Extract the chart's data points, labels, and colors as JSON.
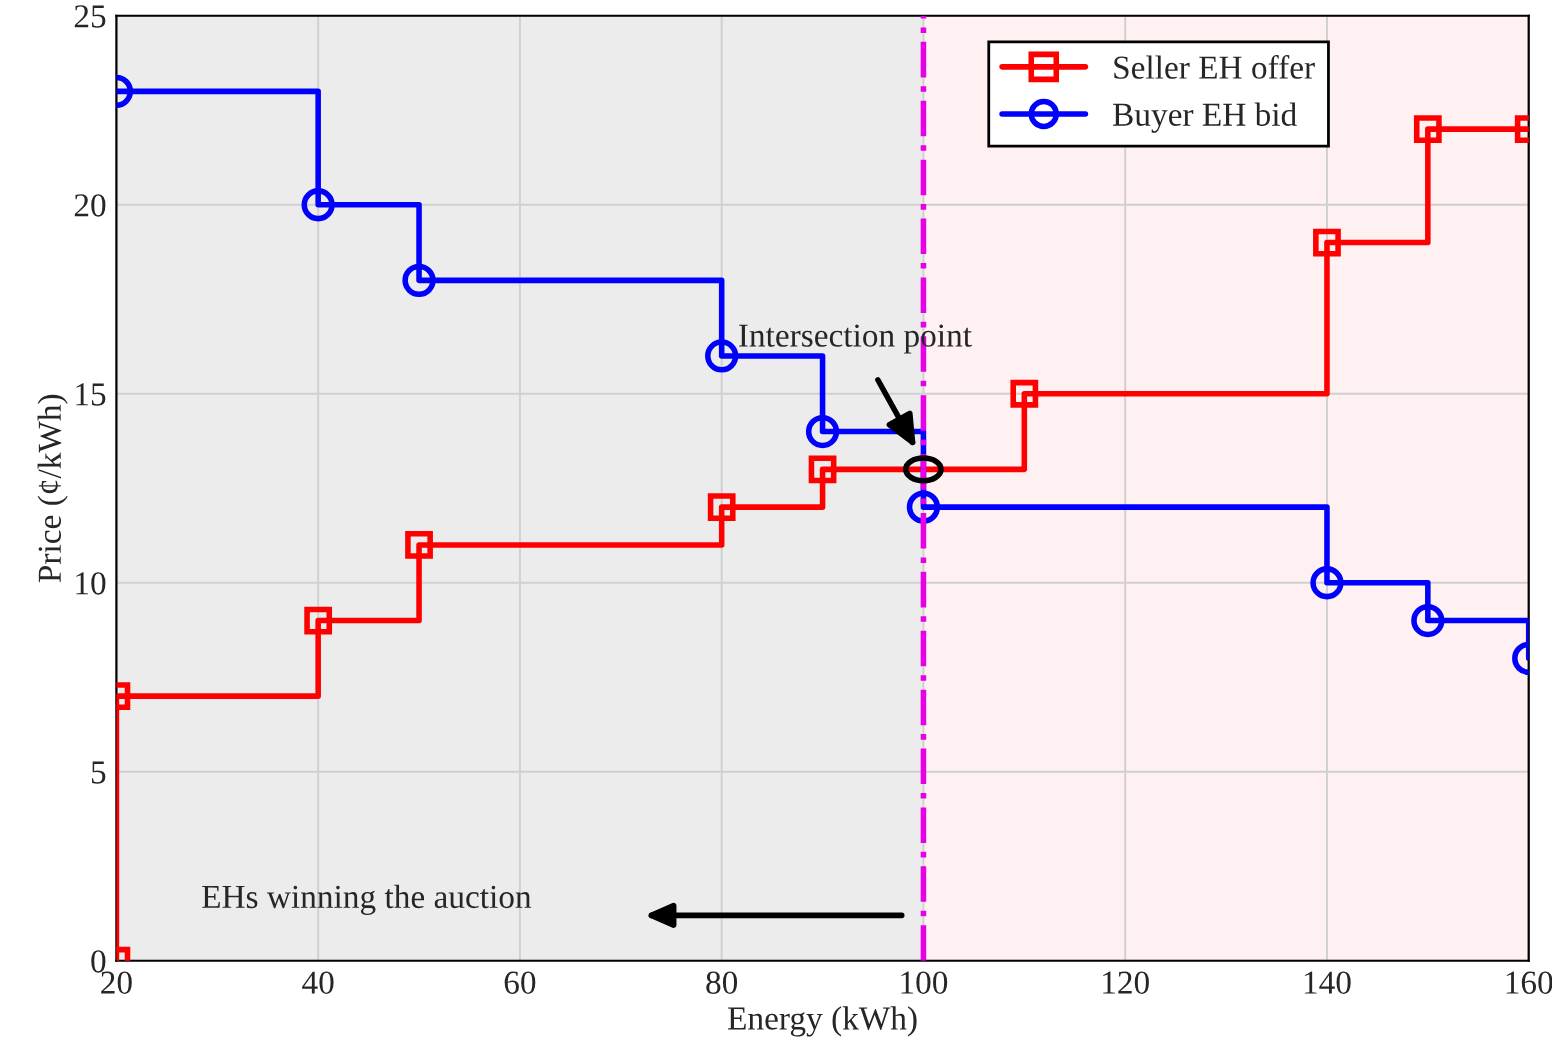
{
  "chart_data": {
    "type": "step",
    "xlabel": "Energy (kWh)",
    "ylabel": "Price (¢/kWh)",
    "series": [
      {
        "name": "Seller EH offer",
        "color": "#ff0000",
        "marker": "square",
        "x": [
          20,
          20,
          40,
          50,
          80,
          90,
          110,
          140,
          150,
          160
        ],
        "values": [
          0,
          7,
          9,
          11,
          12,
          13,
          15,
          19,
          22,
          22
        ]
      },
      {
        "name": "Buyer EH bid",
        "color": "#0000ff",
        "marker": "circle",
        "x": [
          20,
          40,
          50,
          80,
          90,
          100,
          140,
          150,
          160
        ],
        "values": [
          23,
          20,
          18,
          16,
          14,
          12,
          10,
          9,
          8
        ]
      }
    ],
    "xlim": [
      20,
      160
    ],
    "xticks": [
      20,
      40,
      60,
      80,
      100,
      120,
      140,
      160
    ],
    "ylim": [
      0,
      25
    ],
    "yticks": [
      0,
      5,
      10,
      15,
      20,
      25
    ],
    "bands": [
      {
        "axis": "x",
        "from": 20,
        "to": 100,
        "color": "#ececec"
      },
      {
        "axis": "x",
        "from": 100,
        "to": 160,
        "color": "#fff0f2"
      }
    ],
    "ref_lines": [
      {
        "axis": "x",
        "value": 100,
        "color": "#e600e6",
        "line_style": "dashdot"
      }
    ],
    "annotations": [
      "Intersection point",
      "EHs winning the auction"
    ],
    "grid": true,
    "legend": "top right",
    "line_style": "solid"
  }
}
